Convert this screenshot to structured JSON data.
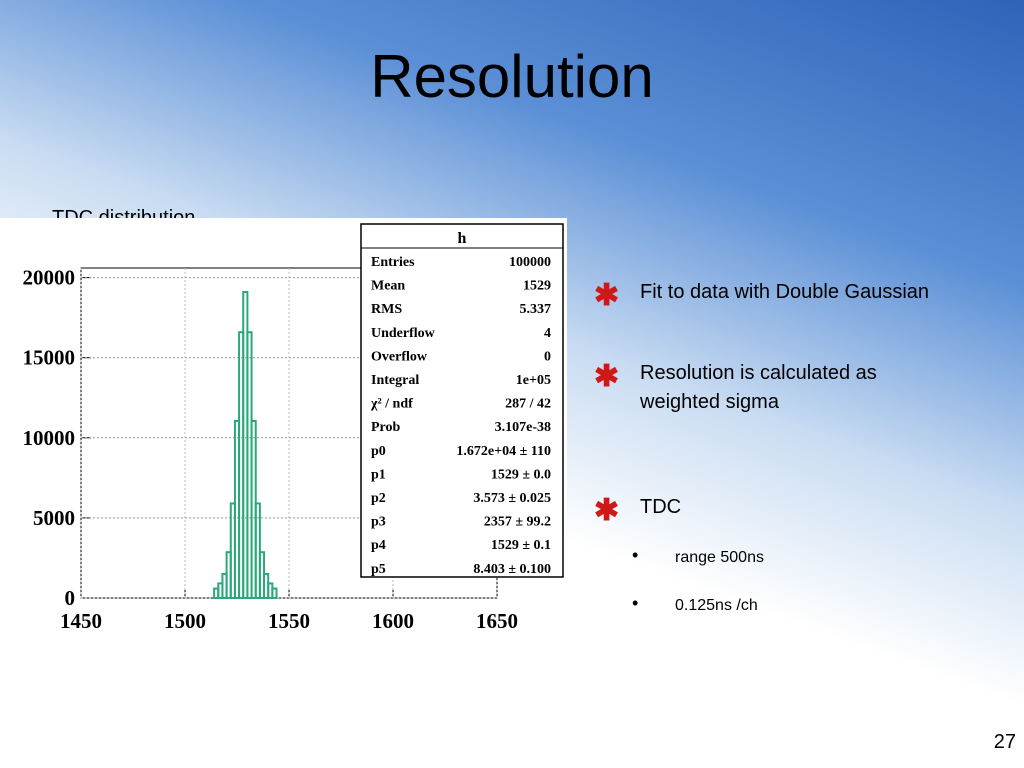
{
  "title": "Resolution",
  "chart_caption": "TDC distribution",
  "chart_data": {
    "type": "histogram",
    "bins": [
      1514,
      1516,
      1518,
      1520,
      1522,
      1524,
      1526,
      1528,
      1530,
      1532,
      1534,
      1536,
      1538,
      1540,
      1542,
      1544
    ],
    "values": [
      590,
      910,
      1500,
      2860,
      5900,
      11050,
      16590,
      19100,
      16590,
      11050,
      5900,
      2860,
      1500,
      910,
      590
    ],
    "color": "#2aa87a",
    "xlim": [
      1450,
      1650
    ],
    "ylim": [
      0,
      20600
    ],
    "xticks": [
      1450,
      1500,
      1550,
      1600,
      1650
    ],
    "yticks": [
      0,
      5000,
      10000,
      15000,
      20000
    ],
    "grid": true,
    "stats": {
      "title": "h",
      "rows": [
        [
          "Entries",
          "100000"
        ],
        [
          "Mean",
          "1529"
        ],
        [
          "RMS",
          "5.337"
        ],
        [
          "Underflow",
          "4"
        ],
        [
          "Overflow",
          "0"
        ],
        [
          "Integral",
          "1e+05"
        ],
        [
          "χ² / ndf",
          "287 / 42"
        ],
        [
          "Prob",
          "3.107e-38"
        ],
        [
          "p0",
          "1.672e+04 ± 110"
        ],
        [
          "p1",
          "1529 ± 0.0"
        ],
        [
          "p2",
          "3.573 ± 0.025"
        ],
        [
          "p3",
          "2357 ± 99.2"
        ],
        [
          "p4",
          "1529 ± 0.1"
        ],
        [
          "p5",
          "8.403 ± 0.100"
        ]
      ]
    }
  },
  "bullets": [
    "Fit to data with Double Gaussian",
    "Resolution is calculated as weighted sigma",
    "TDC"
  ],
  "sub_bullets": [
    "range 500ns",
    "0.125ns /ch"
  ],
  "page_number": "27"
}
